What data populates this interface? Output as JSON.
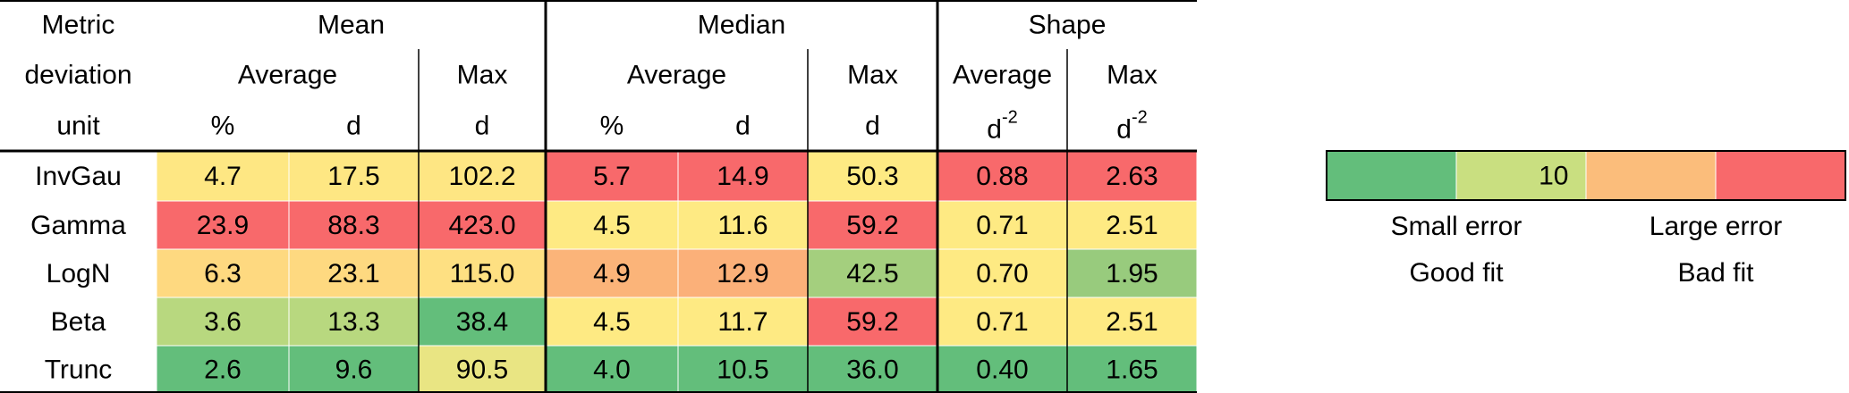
{
  "table": {
    "header": [
      [
        "Metric",
        "Mean",
        "Median",
        "Shape"
      ],
      [
        "deviation",
        "Average",
        "Max",
        "Average",
        "Max",
        "Average",
        "Max"
      ],
      [
        "unit",
        "%",
        "d",
        "d",
        "%",
        "d",
        "d",
        {
          "base": "d",
          "sup": "-2"
        },
        {
          "base": "d",
          "sup": "-2"
        }
      ]
    ],
    "rows": [
      {
        "label": "InvGau",
        "cells": [
          "4.7",
          "17.5",
          "102.2",
          "5.7",
          "14.9",
          "50.3",
          "0.88",
          "2.63"
        ],
        "colors": [
          "#fee783",
          "#fee783",
          "#fee683",
          "#f8696b",
          "#f8696b",
          "#feea83",
          "#f8696b",
          "#f8696b"
        ]
      },
      {
        "label": "Gamma",
        "cells": [
          "23.9",
          "88.3",
          "423.0",
          "4.5",
          "11.6",
          "59.2",
          "0.71",
          "2.51"
        ],
        "colors": [
          "#f8696b",
          "#f8696b",
          "#f8696b",
          "#feea83",
          "#feea83",
          "#f8696b",
          "#feea83",
          "#feea83"
        ]
      },
      {
        "label": "LogN",
        "cells": [
          "6.3",
          "23.1",
          "115.0",
          "4.9",
          "12.9",
          "42.5",
          "0.70",
          "1.95"
        ],
        "colors": [
          "#fed980",
          "#fed980",
          "#fee082",
          "#fbb479",
          "#fbb079",
          "#a4cf7e",
          "#feea83",
          "#98cb7d"
        ]
      },
      {
        "label": "Beta",
        "cells": [
          "3.6",
          "13.3",
          "38.4",
          "4.5",
          "11.7",
          "59.2",
          "0.71",
          "2.51"
        ],
        "colors": [
          "#b8d87f",
          "#b8d87f",
          "#63be7b",
          "#feea83",
          "#feea83",
          "#f8696b",
          "#feea83",
          "#feea83"
        ]
      },
      {
        "label": "Trunc",
        "cells": [
          "2.6",
          "9.6",
          "90.5",
          "4.0",
          "10.5",
          "36.0",
          "0.40",
          "1.65"
        ],
        "colors": [
          "#63be7b",
          "#63be7b",
          "#e9e583",
          "#63be7b",
          "#63be7b",
          "#63be7b",
          "#63be7b",
          "#63be7b"
        ]
      }
    ]
  },
  "legend": {
    "colors": [
      "#63be7b",
      "#c9df80",
      "#fbbd7b",
      "#f8696b"
    ],
    "middle_text": "10",
    "labels": [
      "Small error",
      "Large error"
    ],
    "sublabels": [
      "Good fit",
      "Bad fit"
    ]
  }
}
